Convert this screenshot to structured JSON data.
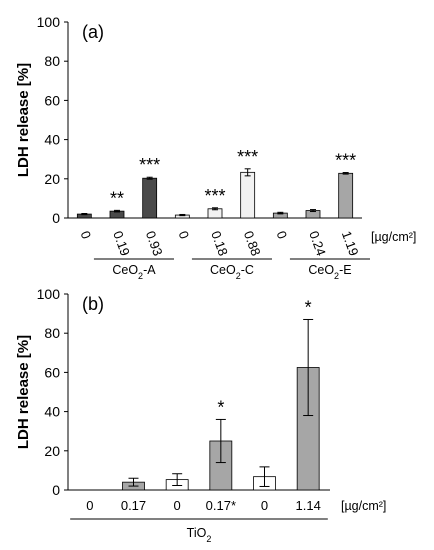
{
  "chart_data": [
    {
      "type": "bar",
      "panel_label": "(a)",
      "ylabel": "LDH release [%]",
      "ylim": [
        0,
        100
      ],
      "yticks": [
        "0",
        "20",
        "40",
        "60",
        "80",
        "100"
      ],
      "categories": [
        "0",
        "0.19",
        "0.93",
        "0",
        "0.18",
        "0.88",
        "0",
        "0.24",
        "1.19"
      ],
      "unit": "[µg/cm²]",
      "values": [
        2,
        3.5,
        20.3,
        1.5,
        4.7,
        23.3,
        2.5,
        3.8,
        22.8
      ],
      "errors": [
        0.3,
        0.4,
        0.5,
        0.3,
        0.5,
        1.8,
        0.4,
        0.5,
        0.4
      ],
      "colors": [
        "#4a4a4a",
        "#4a4a4a",
        "#4a4a4a",
        "#f2f2f2",
        "#f2f2f2",
        "#f2f2f2",
        "#a6a6a6",
        "#a6a6a6",
        "#a6a6a6"
      ],
      "significance": [
        "",
        "**",
        "***",
        "",
        "***",
        "***",
        "",
        "",
        "***"
      ],
      "groups": [
        {
          "prefix": "CeO",
          "sub": "2",
          "suffix": "-A"
        },
        {
          "prefix": "CeO",
          "sub": "2",
          "suffix": "-C"
        },
        {
          "prefix": "CeO",
          "sub": "2",
          "suffix": "-E"
        }
      ]
    },
    {
      "type": "bar",
      "panel_label": "(b)",
      "ylabel": "LDH release [%]",
      "ylim": [
        0,
        100
      ],
      "yticks": [
        "0",
        "20",
        "40",
        "60",
        "80",
        "100"
      ],
      "categories": [
        "0",
        "0.17",
        "0",
        "0.17*",
        "0",
        "1.14"
      ],
      "unit": "[µg/cm²]",
      "values": [
        0,
        4,
        5.3,
        25,
        6.8,
        62.5
      ],
      "errors": [
        0,
        2,
        3,
        11,
        5,
        24.5
      ],
      "colors": [
        "#a6a6a6",
        "#a6a6a6",
        "#ffffff",
        "#a6a6a6",
        "#ffffff",
        "#a6a6a6"
      ],
      "significance": [
        "",
        "",
        "",
        "*",
        "",
        "*"
      ],
      "group": {
        "prefix": "TiO",
        "sub": "2",
        "suffix": ""
      }
    }
  ]
}
